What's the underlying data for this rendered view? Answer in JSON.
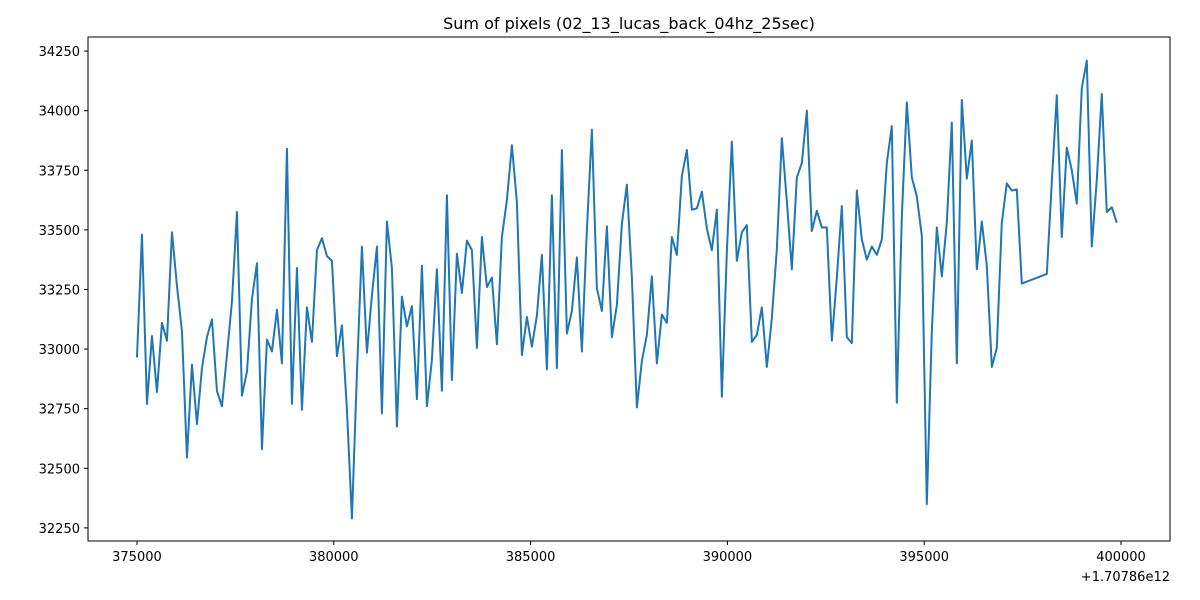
{
  "chart_data": {
    "type": "line",
    "title": "Sum of pixels (02_13_lucas_back_04hz_25sec)",
    "x_offset_label": "+1.70786e12",
    "color": "#1f77b4",
    "xlim": [
      373756,
      401244
    ],
    "ylim": [
      32195,
      34309
    ],
    "xticks": [
      375000,
      380000,
      385000,
      390000,
      395000,
      400000
    ],
    "yticks": [
      32250,
      32500,
      32750,
      33000,
      33250,
      33500,
      33750,
      34000,
      34250
    ],
    "x": [
      375000,
      375127,
      375254,
      375381,
      375508,
      375635,
      375762,
      375889,
      376016,
      376143,
      376270,
      376397,
      376524,
      376651,
      376778,
      376905,
      377032,
      377159,
      377286,
      377413,
      377540,
      377667,
      377794,
      377921,
      378048,
      378175,
      378302,
      378429,
      378556,
      378683,
      378810,
      378937,
      379064,
      379191,
      379318,
      379445,
      379572,
      379699,
      379826,
      379953,
      380080,
      380207,
      380334,
      380461,
      380588,
      380715,
      380842,
      380969,
      381096,
      381223,
      381350,
      381477,
      381604,
      381731,
      381858,
      381985,
      382112,
      382239,
      382366,
      382493,
      382620,
      382747,
      382874,
      383001,
      383128,
      383255,
      383382,
      383509,
      383636,
      383763,
      383890,
      384017,
      384144,
      384271,
      384398,
      384525,
      384652,
      384779,
      384906,
      385033,
      385160,
      385287,
      385414,
      385541,
      385668,
      385795,
      385922,
      386049,
      386176,
      386303,
      386430,
      386557,
      386684,
      386811,
      386938,
      387065,
      387192,
      387319,
      387446,
      387573,
      387700,
      387827,
      387954,
      388081,
      388208,
      388335,
      388462,
      388589,
      388716,
      388843,
      388970,
      389097,
      389224,
      389351,
      389478,
      389605,
      389732,
      389859,
      389986,
      390113,
      390240,
      390367,
      390494,
      390621,
      390748,
      390875,
      391002,
      391129,
      391256,
      391383,
      391510,
      391637,
      391764,
      391891,
      392018,
      392145,
      392272,
      392399,
      392526,
      392653,
      392780,
      392907,
      393034,
      393161,
      393288,
      393415,
      393542,
      393669,
      393796,
      393923,
      394050,
      394177,
      394304,
      394431,
      394558,
      394685,
      394812,
      394939,
      395066,
      395193,
      395320,
      395447,
      395574,
      395701,
      395828,
      395955,
      396082,
      396209,
      396336,
      396463,
      396590,
      396717,
      396844,
      396971,
      397098,
      397225,
      397352,
      397479,
      398114,
      398241,
      398368,
      398495,
      398622,
      398749,
      398876,
      399003,
      399130,
      399257,
      399384,
      399511,
      399638,
      399765,
      399892
    ],
    "values": [
      32965,
      33480,
      32770,
      33055,
      32820,
      33110,
      33035,
      33490,
      33265,
      33075,
      32545,
      32935,
      32685,
      32920,
      33050,
      33125,
      32825,
      32760,
      32975,
      33200,
      33575,
      32805,
      32905,
      33210,
      33360,
      32580,
      33040,
      32990,
      33165,
      32940,
      33840,
      32770,
      33340,
      32745,
      33175,
      33030,
      33415,
      33465,
      33390,
      33370,
      32970,
      33100,
      32745,
      32290,
      32900,
      33430,
      32985,
      33225,
      33430,
      32730,
      33535,
      33340,
      32675,
      33220,
      33095,
      33180,
      32790,
      33350,
      32760,
      32955,
      33335,
      32825,
      33645,
      32870,
      33400,
      33235,
      33455,
      33415,
      33005,
      33470,
      33260,
      33300,
      33020,
      33470,
      33625,
      33855,
      33615,
      32975,
      33135,
      33010,
      33140,
      33395,
      32915,
      33645,
      32920,
      33835,
      33065,
      33160,
      33385,
      32990,
      33500,
      33920,
      33255,
      33160,
      33515,
      33050,
      33185,
      33525,
      33690,
      33300,
      32755,
      32950,
      33060,
      33305,
      32940,
      33145,
      33110,
      33470,
      33395,
      33725,
      33835,
      33585,
      33590,
      33660,
      33505,
      33415,
      33585,
      32800,
      33410,
      33870,
      33370,
      33490,
      33520,
      33030,
      33060,
      33175,
      32925,
      33130,
      33420,
      33885,
      33620,
      33335,
      33720,
      33780,
      34000,
      33495,
      33580,
      33510,
      33510,
      33035,
      33300,
      33600,
      33050,
      33025,
      33665,
      33460,
      33375,
      33430,
      33395,
      33460,
      33780,
      33935,
      32775,
      33555,
      34035,
      33720,
      33640,
      33475,
      32350,
      33075,
      33510,
      33305,
      33530,
      33950,
      32940,
      34045,
      33715,
      33875,
      33335,
      33535,
      33350,
      32925,
      33005,
      33530,
      33695,
      33665,
      33670,
      33275,
      33315,
      33700,
      34065,
      33470,
      33845,
      33750,
      33610,
      34095,
      34210,
      33430,
      33710,
      34070,
      33575,
      33595,
      33530
    ]
  }
}
